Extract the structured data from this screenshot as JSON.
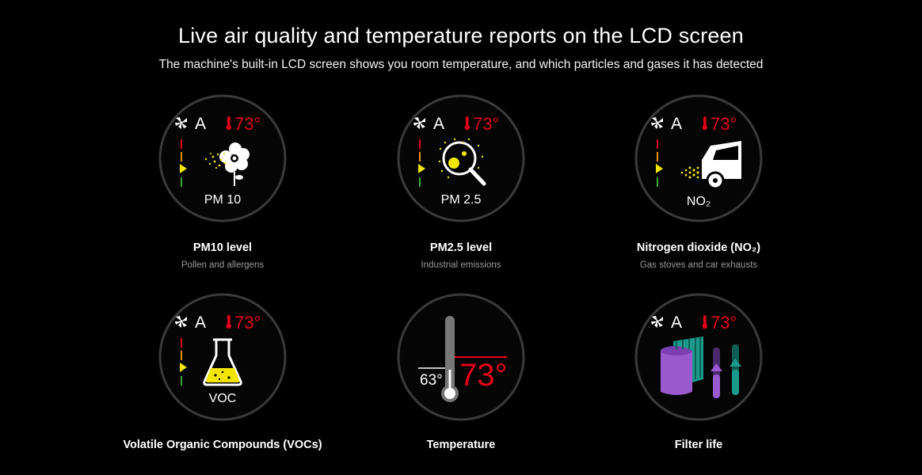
{
  "header": {
    "title": "Live air quality and temperature reports on the LCD screen",
    "subtitle": "The machine's built-in LCD screen shows you room temperature, and which particles and gases it has detected"
  },
  "status": {
    "mode": "A",
    "temperature": "73°"
  },
  "cards": [
    {
      "dial_label": "PM 10",
      "caption": "PM10 level",
      "description": "Pollen and allergens",
      "icon": "flower-pollen-icon"
    },
    {
      "dial_label": "PM 2.5",
      "caption": "PM2.5 level",
      "description": "Industrial emissions",
      "icon": "magnifier-particles-icon"
    },
    {
      "dial_label": "NO₂",
      "caption": "Nitrogen dioxide (NO₂)",
      "description": "Gas stoves and car exhausts",
      "icon": "car-exhaust-icon"
    },
    {
      "dial_label": "VOC",
      "caption": "Volatile Organic Compounds (VOCs)",
      "description": "",
      "icon": "flask-icon"
    },
    {
      "dial_label": "",
      "caption": "Temperature",
      "description": "",
      "icon": "thermometer-icon",
      "low_reading": "63°",
      "high_reading": "73°"
    },
    {
      "dial_label": "",
      "caption": "Filter life",
      "description": "",
      "icon": "filter-icon"
    }
  ],
  "colors": {
    "temperature": "#e3001b",
    "indicator": "#f2e600",
    "level_red": "#e3001b",
    "level_orange": "#f39200",
    "level_green": "#3aaa35",
    "filter_purple": "#9b59d0",
    "filter_teal": "#1a9a8a",
    "ring": "#3a3a3a"
  }
}
